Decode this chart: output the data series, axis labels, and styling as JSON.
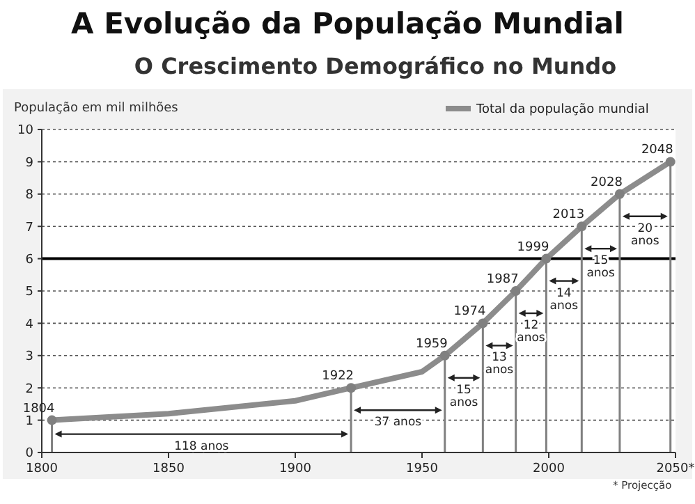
{
  "chart_data": {
    "type": "line",
    "title": "A Evolução da População Mundial",
    "subtitle": "O Crescimento Demográfico no Mundo",
    "ylabel": "População em mil milhões",
    "series": [
      {
        "name": "Total da população mundial",
        "color": "#8c8c8c",
        "marker": "none",
        "x": [
          1804,
          1850,
          1900,
          1922,
          1950,
          1959,
          1974,
          1987,
          1999,
          2013,
          2028,
          2048
        ],
        "values": [
          1,
          1.2,
          1.6,
          2,
          2.5,
          3,
          4,
          5,
          6,
          7,
          8,
          9
        ]
      },
      {
        "type": "lollipop",
        "color": "#808080",
        "marker": "circle",
        "x": [
          1804,
          1922,
          1959,
          1974,
          1987,
          1999,
          2013,
          2028,
          2048
        ],
        "values": [
          1,
          2,
          3,
          4,
          5,
          6,
          7,
          8,
          9
        ]
      }
    ],
    "annotations": [
      {
        "text": "1804",
        "x": 1804,
        "y": 1
      },
      {
        "text": "1922",
        "x": 1922,
        "y": 2
      },
      {
        "text": "1959",
        "x": 1959,
        "y": 3
      },
      {
        "text": "1974",
        "x": 1974,
        "y": 4
      },
      {
        "text": "1987",
        "x": 1987,
        "y": 5
      },
      {
        "text": "1999",
        "x": 1999,
        "y": 6
      },
      {
        "text": "2013",
        "x": 2013,
        "y": 7
      },
      {
        "text": "2028",
        "x": 2028,
        "y": 8
      },
      {
        "text": "2048",
        "x": 2048,
        "y": 9
      },
      "118 anos",
      "37 anos",
      "15 anos",
      "13 anos",
      "12 anos",
      "14 anos",
      "15 anos",
      "20 anos",
      "* Projecção"
    ],
    "ref_lines": [
      {
        "axis": "y",
        "value": 6,
        "color": "#000000"
      }
    ],
    "xlim": [
      1800,
      2050
    ],
    "xticks": [
      1800,
      1850,
      1900,
      1950,
      2000,
      {
        "value": 2050,
        "label": "2050*"
      }
    ],
    "ylim": [
      0,
      10
    ],
    "yticks": [
      0,
      1,
      2,
      3,
      4,
      5,
      6,
      7,
      8,
      9,
      10
    ],
    "grid": "y",
    "legend": "top right",
    "line_style": "solid"
  }
}
